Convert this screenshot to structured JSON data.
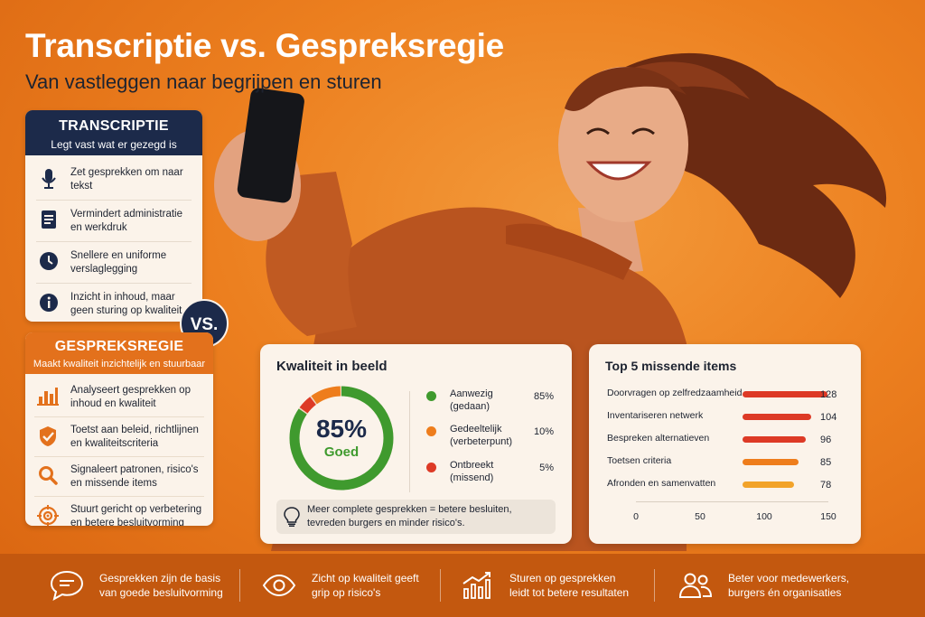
{
  "title": "Transcriptie vs. Gespreksregie",
  "subtitle": "Van vastleggen naar begrijpen en sturen",
  "transcriptie": {
    "title": "TRANSCRIPTIE",
    "subtitle": "Legt vast wat er gezegd is",
    "items": [
      {
        "icon": "microphone-icon",
        "text": "Zet gesprekken om naar tekst"
      },
      {
        "icon": "document-icon",
        "text": "Vermindert administratie en werkdruk"
      },
      {
        "icon": "clock-icon",
        "text": "Snellere en uniforme verslaglegging"
      },
      {
        "icon": "info-icon",
        "text": "Inzicht in inhoud, maar geen sturing op kwaliteit"
      }
    ]
  },
  "vs_label": "VS.",
  "gespreksregie": {
    "title": "GESPREKSREGIE",
    "subtitle": "Maakt kwaliteit inzichtelijk en stuurbaar",
    "items": [
      {
        "icon": "bar-chart-icon",
        "text": "Analyseert gesprekken op inhoud en kwaliteit"
      },
      {
        "icon": "shield-check-icon",
        "text": "Toetst aan beleid, richtlijnen en kwaliteitscriteria"
      },
      {
        "icon": "magnifier-icon",
        "text": "Signaleert patronen, risico's en missende items"
      },
      {
        "icon": "target-icon",
        "text": "Stuurt gericht op verbetering en betere besluitvorming"
      }
    ]
  },
  "quality": {
    "title": "Kwaliteit in beeld",
    "score": "85%",
    "score_label": "Goed",
    "legend": [
      {
        "label_line1": "Aanwezig",
        "label_line2": "(gedaan)",
        "value": "85%",
        "fraction": 0.85,
        "color": "#3f9a2e"
      },
      {
        "label_line1": "Gedeeltelijk",
        "label_line2": "(verbeterpunt)",
        "value": "10%",
        "fraction": 0.1,
        "color": "#ee7d1c"
      },
      {
        "label_line1": "Ontbreekt",
        "label_line2": "(missend)",
        "value": "5%",
        "fraction": 0.05,
        "color": "#dd3a26"
      }
    ],
    "note_line1": "Meer complete gesprekken = betere besluiten,",
    "note_line2": "tevreden burgers en minder risico's."
  },
  "chart_data": {
    "type": "bar",
    "title": "Top 5 missende items",
    "categories": [
      "Doorvragen op zelfredzaamheid",
      "Inventariseren netwerk",
      "Bespreken alternatieven",
      "Toetsen criteria",
      "Afronden en samenvatten"
    ],
    "values": [
      128,
      104,
      96,
      85,
      78
    ],
    "colors": [
      "#dd3a26",
      "#dd3a26",
      "#dd3a26",
      "#ee7d1c",
      "#f2a32a"
    ],
    "xlim": [
      0,
      150
    ],
    "xticks": [
      "0",
      "50",
      "100",
      "150"
    ],
    "xlabel": "",
    "ylabel": ""
  },
  "bottom": [
    {
      "icon": "chat-bubble-icon",
      "line1": "Gesprekken zijn de basis",
      "line2": "van goede besluitvorming"
    },
    {
      "icon": "eye-icon",
      "line1": "Zicht op kwaliteit geeft",
      "line2": "grip op risico's"
    },
    {
      "icon": "growth-chart-icon",
      "line1": "Sturen op gesprekken",
      "line2": "leidt tot betere resultaten"
    },
    {
      "icon": "people-icon",
      "line1": "Beter voor medewerkers,",
      "line2": "burgers én organisaties"
    }
  ]
}
